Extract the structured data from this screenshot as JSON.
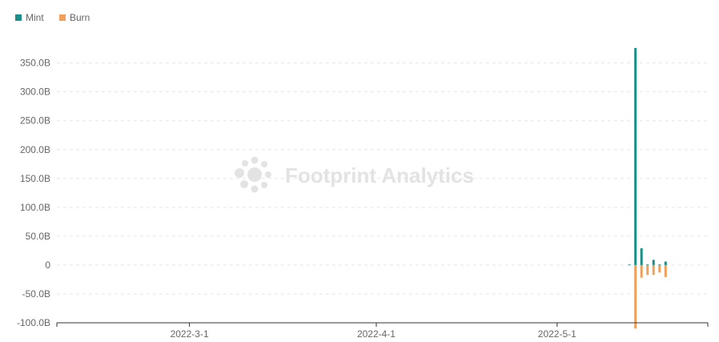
{
  "watermark": "Footprint Analytics",
  "chart_data": {
    "type": "bar",
    "title": "",
    "xlabel": "",
    "ylabel": "",
    "legend_position": "top-left",
    "grid": "horizontal-dashed",
    "ylim": [
      -100,
      380
    ],
    "y_ticks": [
      -100,
      -50,
      0,
      50,
      100,
      150,
      200,
      250,
      300,
      350
    ],
    "y_tick_labels": [
      "-100.0B",
      "-50.0B",
      "0",
      "50.0B",
      "100.0B",
      "150.0B",
      "200.0B",
      "250.0B",
      "300.0B",
      "350.0B"
    ],
    "x_range": [
      "2022-02-07",
      "2022-05-26"
    ],
    "x_ticks": [
      "2022-03-01",
      "2022-04-01",
      "2022-05-01"
    ],
    "x_tick_labels": [
      "2022-3-1",
      "2022-4-1",
      "2022-5-1"
    ],
    "series": [
      {
        "name": "Mint",
        "color": "#1a8f8a",
        "points": [
          {
            "x": "2022-05-13",
            "y": 1
          },
          {
            "x": "2022-05-14",
            "y": 376
          },
          {
            "x": "2022-05-15",
            "y": 29
          },
          {
            "x": "2022-05-16",
            "y": 1
          },
          {
            "x": "2022-05-17",
            "y": 9
          },
          {
            "x": "2022-05-18",
            "y": 1
          },
          {
            "x": "2022-05-19",
            "y": 6
          }
        ]
      },
      {
        "name": "Burn",
        "color": "#f0a05a",
        "points": [
          {
            "x": "2022-05-14",
            "y": -110
          },
          {
            "x": "2022-05-15",
            "y": -22
          },
          {
            "x": "2022-05-16",
            "y": -17
          },
          {
            "x": "2022-05-17",
            "y": -17
          },
          {
            "x": "2022-05-18",
            "y": -13
          },
          {
            "x": "2022-05-19",
            "y": -21
          }
        ]
      }
    ]
  }
}
